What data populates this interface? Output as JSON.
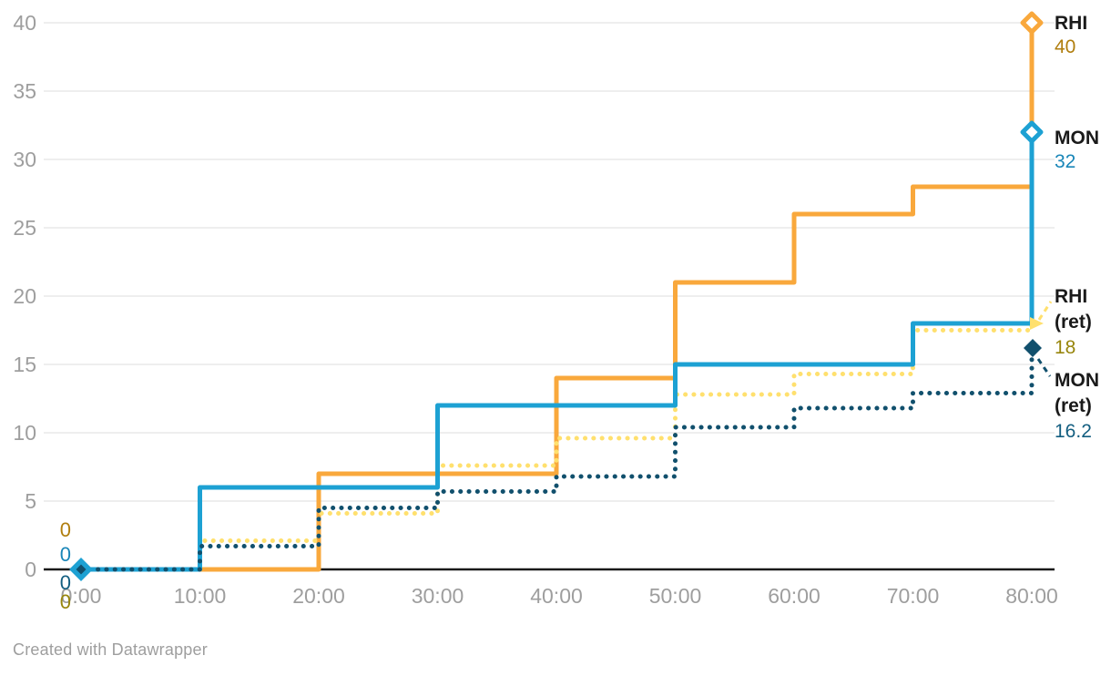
{
  "chart_data": {
    "type": "line",
    "variant": "step-after",
    "x": [
      0,
      10,
      20,
      30,
      40,
      50,
      60,
      70,
      80
    ],
    "x_tick_labels": [
      "0:00",
      "10:00",
      "20:00",
      "30:00",
      "40:00",
      "50:00",
      "60:00",
      "70:00",
      "80:00"
    ],
    "y_ticks": [
      0,
      5,
      10,
      15,
      20,
      25,
      30,
      35,
      40
    ],
    "ylim": [
      0,
      40
    ],
    "grid": true,
    "legend_position": "end-of-line-labels",
    "series": [
      {
        "name": "RHI",
        "label_lines": [
          "RHI"
        ],
        "values": [
          0,
          0,
          7,
          7,
          14,
          21,
          26,
          28,
          40
        ],
        "style": "solid",
        "line_color": "#F9A83C",
        "value_color": "#B07E0E",
        "start_label": "0",
        "end_value_label": "40",
        "end_marker": "hollow-diamond"
      },
      {
        "name": "MON",
        "label_lines": [
          "MON"
        ],
        "values": [
          0,
          6,
          6,
          12,
          12,
          15,
          15,
          18,
          32
        ],
        "style": "solid",
        "line_color": "#1DA1D3",
        "value_color": "#1986B8",
        "start_label": "0",
        "end_value_label": "32",
        "start_marker": "solid-diamond",
        "end_marker": "hollow-diamond"
      },
      {
        "name": "RHI (ret)",
        "label_lines": [
          "RHI",
          "(ret)"
        ],
        "values": [
          0,
          2.1,
          4.1,
          7.6,
          9.6,
          12.8,
          14.3,
          17.5,
          18
        ],
        "style": "dotted",
        "line_color": "#FFE06E",
        "value_color": "#97850C",
        "start_label": "0",
        "end_value_label": "18",
        "end_marker": "arrow"
      },
      {
        "name": "MON (ret)",
        "label_lines": [
          "MON",
          "(ret)"
        ],
        "values": [
          0,
          1.7,
          4.5,
          5.7,
          6.8,
          10.4,
          11.8,
          12.9,
          16.2
        ],
        "style": "dotted",
        "line_color": "#11506D",
        "value_color": "#135E80",
        "start_label": "0",
        "end_value_label": "16.2",
        "start_marker": "solid-diamond",
        "end_marker": "solid-diamond"
      }
    ]
  },
  "footer": {
    "credit": "Created with Datawrapper"
  }
}
